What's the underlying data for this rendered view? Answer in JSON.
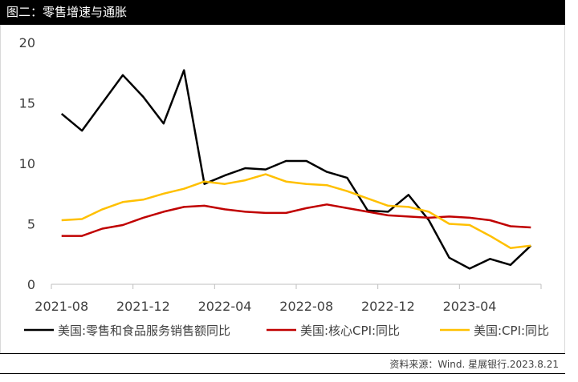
{
  "header": {
    "title": "图二：零售增速与通胀"
  },
  "footer": {
    "source": "资料来源：Wind. 星展银行.2023.8.21"
  },
  "chart_data": {
    "type": "line",
    "x": [
      "2021-08",
      "2021-09",
      "2021-10",
      "2021-11",
      "2021-12",
      "2022-01",
      "2022-02",
      "2022-03",
      "2022-04",
      "2022-05",
      "2022-06",
      "2022-07",
      "2022-08",
      "2022-09",
      "2022-10",
      "2022-11",
      "2022-12",
      "2023-01",
      "2023-02",
      "2023-03",
      "2023-04",
      "2023-05",
      "2023-06",
      "2023-07"
    ],
    "x_tick_labels": [
      "2021-08",
      "2021-12",
      "2022-04",
      "2022-08",
      "2022-12",
      "2023-04"
    ],
    "y_ticks": [
      0,
      5,
      10,
      15,
      20
    ],
    "ylim": [
      0,
      20
    ],
    "grid": false,
    "legend_position": "bottom",
    "series": [
      {
        "name": "美国:零售和食品服务销售额同比",
        "color": "#000000",
        "values": [
          14.1,
          12.7,
          15.0,
          17.3,
          15.5,
          13.3,
          17.7,
          8.3,
          9.0,
          9.6,
          9.5,
          10.2,
          10.2,
          9.3,
          8.8,
          6.1,
          6.0,
          7.4,
          5.3,
          2.2,
          1.3,
          2.1,
          1.6,
          3.2
        ]
      },
      {
        "name": "美国:核心CPI:同比",
        "color": "#c00000",
        "values": [
          4.0,
          4.0,
          4.6,
          4.9,
          5.5,
          6.0,
          6.4,
          6.5,
          6.2,
          6.0,
          5.9,
          5.9,
          6.3,
          6.6,
          6.3,
          6.0,
          5.7,
          5.6,
          5.5,
          5.6,
          5.5,
          5.3,
          4.8,
          4.7
        ]
      },
      {
        "name": "美国:CPI:同比",
        "color": "#ffc000",
        "values": [
          5.3,
          5.4,
          6.2,
          6.8,
          7.0,
          7.5,
          7.9,
          8.5,
          8.3,
          8.6,
          9.1,
          8.5,
          8.3,
          8.2,
          7.7,
          7.1,
          6.5,
          6.4,
          6.0,
          5.0,
          4.9,
          4.0,
          3.0,
          3.2
        ]
      }
    ]
  }
}
